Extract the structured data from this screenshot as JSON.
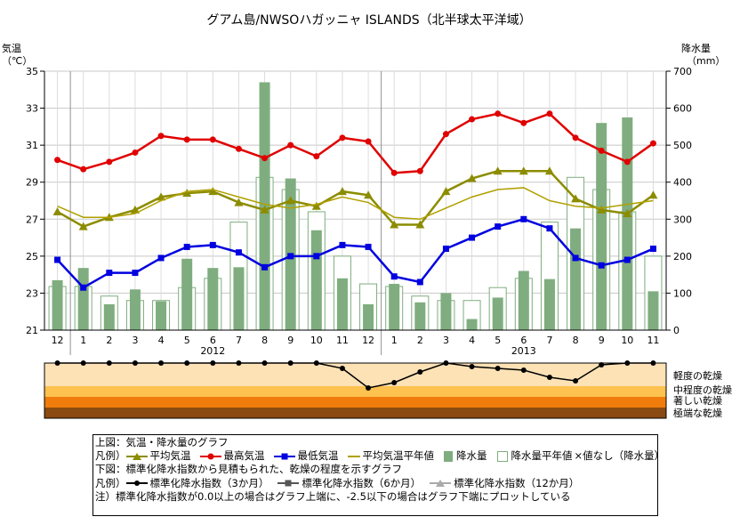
{
  "title": "グアム島/NWSOハガッニャ ISLANDS（北半球太平洋域）",
  "chart_data": [
    {
      "type": "line",
      "panel": "climate",
      "y_left_label_line1": "気温",
      "y_left_label_line2": "（℃）",
      "y_right_label_line1": "降水量",
      "y_right_label_line2": "（mm）",
      "y_left_range": [
        21,
        35
      ],
      "y_left_ticks": [
        "21",
        "23",
        "25",
        "27",
        "29",
        "31",
        "33",
        "35"
      ],
      "y_right_range": [
        0,
        700
      ],
      "y_right_ticks": [
        "0",
        "100",
        "200",
        "300",
        "400",
        "500",
        "600",
        "700"
      ],
      "x_ticks": [
        "12",
        "1",
        "2",
        "3",
        "4",
        "5",
        "6",
        "7",
        "8",
        "9",
        "10",
        "11",
        "12",
        "1",
        "2",
        "3",
        "4",
        "5",
        "6",
        "7",
        "8",
        "9",
        "10",
        "11"
      ],
      "year_labels": [
        {
          "label": "2012",
          "index": 6
        },
        {
          "label": "2013",
          "index": 18
        }
      ],
      "grid": true,
      "series": [
        {
          "name": "平均気温",
          "color": "#8c8c00",
          "marker": "triangle",
          "values": [
            27.4,
            26.6,
            27.1,
            27.5,
            28.2,
            28.4,
            28.5,
            27.9,
            27.5,
            28.0,
            27.7,
            28.5,
            28.3,
            26.7,
            26.7,
            28.5,
            29.2,
            29.6,
            29.6,
            29.6,
            28.1,
            27.5,
            27.3,
            28.3
          ]
        },
        {
          "name": "最高気温",
          "color": "#e00000",
          "marker": "circle",
          "values": [
            30.2,
            29.7,
            30.1,
            30.6,
            31.5,
            31.3,
            31.3,
            30.8,
            30.3,
            31.0,
            30.4,
            31.4,
            31.2,
            29.5,
            29.6,
            31.6,
            32.4,
            32.7,
            32.2,
            32.7,
            31.4,
            30.7,
            30.1,
            31.1
          ]
        },
        {
          "name": "最低気温",
          "color": "#0000e0",
          "marker": "square",
          "values": [
            24.8,
            23.3,
            24.1,
            24.1,
            24.9,
            25.5,
            25.6,
            25.2,
            24.4,
            25.0,
            25.0,
            25.6,
            25.5,
            23.9,
            23.6,
            25.4,
            26.0,
            26.6,
            27.0,
            26.5,
            24.9,
            24.5,
            24.8,
            25.4
          ]
        },
        {
          "name": "平均気温平年値",
          "color": "#b0a000",
          "values": [
            27.7,
            27.1,
            27.1,
            27.3,
            28.0,
            28.5,
            28.6,
            28.2,
            27.8,
            27.6,
            27.8,
            28.2,
            27.9,
            27.1,
            27.0,
            27.6,
            28.2,
            28.6,
            28.7,
            28.0,
            27.7,
            27.6,
            27.8,
            28.0
          ]
        }
      ],
      "precipitation": {
        "name": "降水量",
        "color": "#7fad7f",
        "values": [
          135,
          168,
          70,
          110,
          78,
          193,
          168,
          170,
          670,
          410,
          270,
          140,
          70,
          125,
          75,
          100,
          30,
          88,
          160,
          138,
          275,
          560,
          575,
          105
        ]
      },
      "precipitation_normal": {
        "name": "降水量平年値",
        "missing_note": "×値なし（降水量）",
        "values": [
          118,
          118,
          92,
          80,
          80,
          115,
          140,
          292,
          413,
          380,
          320,
          200,
          125,
          118,
          92,
          80,
          80,
          115,
          140,
          292,
          413,
          380,
          320,
          200
        ]
      }
    },
    {
      "type": "line",
      "panel": "drought",
      "series": [
        {
          "name": "標準化降水指数（3か月）",
          "color": "#000000",
          "values": [
            0,
            0,
            0,
            0,
            0,
            0,
            0,
            0,
            0,
            0,
            0,
            -0.3,
            -1.4,
            -1.1,
            -0.5,
            0,
            -0.2,
            -0.3,
            -0.4,
            -0.8,
            -1.0,
            -0.1,
            0,
            0
          ]
        },
        {
          "name": "標準化降水指数（6か月）",
          "color": "#555555",
          "values": []
        },
        {
          "name": "標準化降水指数（12か月）",
          "color": "#aaaaaa",
          "values": []
        }
      ],
      "y_range": [
        -2.5,
        0
      ],
      "bands": [
        {
          "label": "軽度の乾燥",
          "color": "#fde2b6"
        },
        {
          "label": "中程度の乾燥",
          "color": "#fdc24f"
        },
        {
          "label": "著しい乾燥",
          "color": "#f07d0b"
        },
        {
          "label": "極端な乾燥",
          "color": "#8a4a12"
        }
      ]
    }
  ],
  "legend": {
    "upper_caption": "上図：気温・降水量のグラフ",
    "upper_prefix": "凡例）",
    "upper_items": [
      "平均気温",
      "最高気温",
      "最低気温",
      "平均気温平年値",
      "降水量",
      "降水量平年値",
      "×値なし（降水量）"
    ],
    "lower_caption": "下図：標準化降水指数から見積もられた、乾燥の程度を示すグラフ",
    "lower_prefix": "凡例）",
    "lower_items": [
      "標準化降水指数（3か月）",
      "標準化降水指数（6か月）",
      "標準化降水指数（12か月）"
    ],
    "note": "注）標準化降水指数が0.0以上の場合はグラフ上端に、-2.5以下の場合はグラフ下端にプロットしている"
  }
}
